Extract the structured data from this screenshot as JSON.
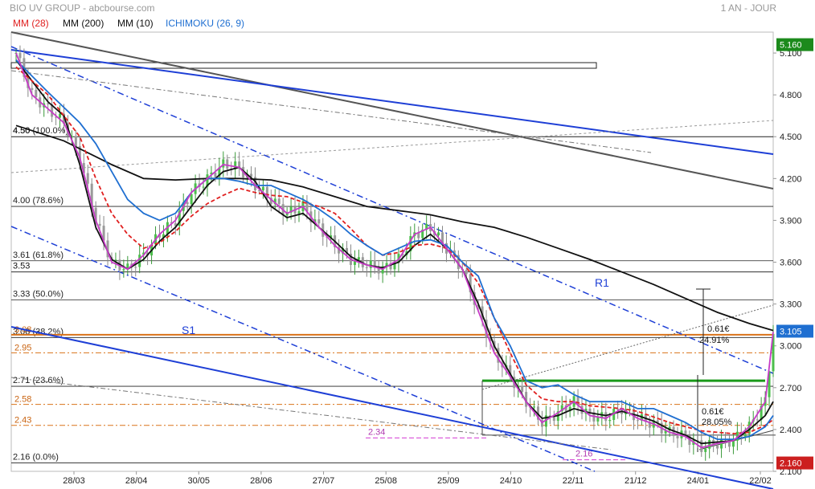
{
  "header": {
    "title": "BIO UV GROUP - abcbourse.com",
    "period": "1 AN - JOUR"
  },
  "legend": [
    {
      "label": "MM (28)",
      "color": "#e02020"
    },
    {
      "label": "MM (200)",
      "color": "#111111"
    },
    {
      "label": "MM (10)",
      "color": "#111111"
    },
    {
      "label": "ICHIMOKU (26, 9)",
      "color": "#1f6fd1"
    }
  ],
  "chart_data": {
    "type": "line",
    "ylim": [
      2.1,
      5.25
    ],
    "x_ticks": [
      "28/03",
      "28/04",
      "30/05",
      "28/06",
      "27/07",
      "25/08",
      "25/09",
      "24/10",
      "22/11",
      "21/12",
      "24/01",
      "22/02"
    ],
    "y_ticks": [
      "2.100",
      "2.400",
      "2.700",
      "3.000",
      "3.300",
      "3.600",
      "3.900",
      "4.200",
      "4.500",
      "4.800",
      "5.100"
    ],
    "last_price": "3.105",
    "max_price": "5.160",
    "min_price": "2.160",
    "fibonacci_levels": [
      {
        "value": 2.16,
        "label": "2.16  (0.0%)"
      },
      {
        "value": 2.71,
        "label": "2.71  (23.6%)"
      },
      {
        "value": 3.06,
        "label": "3.06  (38.2%)"
      },
      {
        "value": 3.33,
        "label": "3.33  (50.0%)"
      },
      {
        "value": 3.61,
        "label": "3.61  (61.8%)"
      },
      {
        "value": 4.0,
        "label": "4.00  (78.6%)"
      },
      {
        "value": 4.5,
        "label": "4.50  (100.0%)"
      }
    ],
    "horizontal_levels": [
      {
        "value": 3.53,
        "label": "3.53",
        "color": "#111111"
      },
      {
        "value": 4.5,
        "label": "4.50",
        "color": "#111111"
      }
    ],
    "orange_levels": [
      {
        "value": 3.08,
        "label": "3.08"
      },
      {
        "value": 2.95,
        "label": "2.95"
      },
      {
        "value": 2.58,
        "label": "2.58"
      },
      {
        "value": 2.43,
        "label": "2.43"
      }
    ],
    "magenta_levels": [
      {
        "value": 2.34,
        "label": "2.34"
      },
      {
        "value": 2.16,
        "label": "2.16"
      }
    ],
    "annotations": [
      {
        "text": "R1",
        "color": "#1e3fd6"
      },
      {
        "text": "S1",
        "color": "#1e3fd6"
      },
      {
        "text": "0.61€",
        "color": "#111111"
      },
      {
        "text": "24.91%",
        "color": "#111111"
      },
      {
        "text": "0.61€",
        "color": "#111111"
      },
      {
        "text": "28.05%",
        "color": "#111111"
      }
    ],
    "series": [
      {
        "name": "MM (200)",
        "color": "#111111",
        "values": [
          [
            0,
            4.58
          ],
          [
            6,
            4.47
          ],
          [
            12,
            4.3
          ],
          [
            16,
            4.2
          ],
          [
            20,
            4.19
          ],
          [
            24,
            4.2
          ],
          [
            28,
            4.2
          ],
          [
            32,
            4.19
          ],
          [
            36,
            4.14
          ],
          [
            40,
            4.07
          ],
          [
            44,
            4.0
          ],
          [
            48,
            3.97
          ],
          [
            52,
            3.94
          ],
          [
            56,
            3.89
          ],
          [
            60,
            3.85
          ],
          [
            64,
            3.78
          ],
          [
            68,
            3.7
          ],
          [
            72,
            3.62
          ],
          [
            76,
            3.53
          ],
          [
            80,
            3.44
          ],
          [
            84,
            3.34
          ],
          [
            88,
            3.24
          ],
          [
            92,
            3.16
          ],
          [
            95,
            3.11
          ]
        ]
      },
      {
        "name": "MM (10)",
        "color": "#111111",
        "values": [
          [
            0,
            5.05
          ],
          [
            2,
            4.9
          ],
          [
            4,
            4.75
          ],
          [
            6,
            4.65
          ],
          [
            8,
            4.3
          ],
          [
            10,
            3.85
          ],
          [
            12,
            3.62
          ],
          [
            14,
            3.55
          ],
          [
            16,
            3.62
          ],
          [
            18,
            3.75
          ],
          [
            20,
            3.85
          ],
          [
            22,
            4.0
          ],
          [
            24,
            4.15
          ],
          [
            26,
            4.25
          ],
          [
            28,
            4.28
          ],
          [
            30,
            4.18
          ],
          [
            32,
            4.0
          ],
          [
            34,
            3.92
          ],
          [
            36,
            3.95
          ],
          [
            38,
            3.85
          ],
          [
            40,
            3.75
          ],
          [
            42,
            3.64
          ],
          [
            44,
            3.58
          ],
          [
            46,
            3.56
          ],
          [
            48,
            3.6
          ],
          [
            50,
            3.72
          ],
          [
            52,
            3.8
          ],
          [
            54,
            3.7
          ],
          [
            56,
            3.55
          ],
          [
            58,
            3.3
          ],
          [
            60,
            3.0
          ],
          [
            62,
            2.8
          ],
          [
            64,
            2.6
          ],
          [
            66,
            2.48
          ],
          [
            68,
            2.5
          ],
          [
            70,
            2.55
          ],
          [
            72,
            2.52
          ],
          [
            74,
            2.5
          ],
          [
            76,
            2.53
          ],
          [
            78,
            2.5
          ],
          [
            80,
            2.46
          ],
          [
            82,
            2.4
          ],
          [
            84,
            2.36
          ],
          [
            86,
            2.3
          ],
          [
            88,
            2.31
          ],
          [
            90,
            2.32
          ],
          [
            92,
            2.4
          ],
          [
            94,
            2.5
          ],
          [
            95,
            2.6
          ]
        ]
      },
      {
        "name": "MM (28)",
        "color": "#e02020",
        "values": [
          [
            0,
            5.0
          ],
          [
            4,
            4.8
          ],
          [
            8,
            4.5
          ],
          [
            10,
            4.2
          ],
          [
            12,
            3.95
          ],
          [
            14,
            3.8
          ],
          [
            16,
            3.7
          ],
          [
            18,
            3.74
          ],
          [
            20,
            3.82
          ],
          [
            22,
            3.93
          ],
          [
            24,
            4.02
          ],
          [
            26,
            4.08
          ],
          [
            28,
            4.13
          ],
          [
            30,
            4.1
          ],
          [
            32,
            4.08
          ],
          [
            34,
            4.07
          ],
          [
            36,
            4.03
          ],
          [
            38,
            4.0
          ],
          [
            40,
            3.95
          ],
          [
            42,
            3.84
          ],
          [
            44,
            3.72
          ],
          [
            46,
            3.65
          ],
          [
            48,
            3.67
          ],
          [
            50,
            3.72
          ],
          [
            52,
            3.73
          ],
          [
            54,
            3.7
          ],
          [
            56,
            3.6
          ],
          [
            58,
            3.45
          ],
          [
            60,
            3.2
          ],
          [
            62,
            2.95
          ],
          [
            64,
            2.72
          ],
          [
            66,
            2.62
          ],
          [
            68,
            2.6
          ],
          [
            70,
            2.6
          ],
          [
            72,
            2.57
          ],
          [
            74,
            2.56
          ],
          [
            76,
            2.55
          ],
          [
            78,
            2.53
          ],
          [
            80,
            2.49
          ],
          [
            82,
            2.45
          ],
          [
            84,
            2.42
          ],
          [
            86,
            2.39
          ],
          [
            88,
            2.38
          ],
          [
            90,
            2.37
          ],
          [
            92,
            2.38
          ],
          [
            94,
            2.43
          ],
          [
            95,
            2.47
          ]
        ]
      },
      {
        "name": "ICHIMOKU (26, 9)",
        "color": "#1f6fd1",
        "values": [
          [
            0,
            5.05
          ],
          [
            4,
            4.82
          ],
          [
            8,
            4.6
          ],
          [
            10,
            4.45
          ],
          [
            12,
            4.25
          ],
          [
            14,
            4.05
          ],
          [
            16,
            3.95
          ],
          [
            18,
            3.9
          ],
          [
            20,
            3.95
          ],
          [
            22,
            4.1
          ],
          [
            24,
            4.2
          ],
          [
            26,
            4.2
          ],
          [
            28,
            4.18
          ],
          [
            30,
            4.15
          ],
          [
            32,
            4.15
          ],
          [
            34,
            4.1
          ],
          [
            36,
            4.05
          ],
          [
            38,
            3.98
          ],
          [
            40,
            3.9
          ],
          [
            42,
            3.8
          ],
          [
            44,
            3.72
          ],
          [
            46,
            3.65
          ],
          [
            48,
            3.7
          ],
          [
            50,
            3.75
          ],
          [
            52,
            3.76
          ],
          [
            54,
            3.72
          ],
          [
            56,
            3.6
          ],
          [
            58,
            3.5
          ],
          [
            60,
            3.2
          ],
          [
            62,
            3.0
          ],
          [
            64,
            2.75
          ],
          [
            66,
            2.7
          ],
          [
            68,
            2.72
          ],
          [
            70,
            2.65
          ],
          [
            72,
            2.6
          ],
          [
            74,
            2.6
          ],
          [
            76,
            2.6
          ],
          [
            78,
            2.55
          ],
          [
            80,
            2.55
          ],
          [
            82,
            2.5
          ],
          [
            84,
            2.45
          ],
          [
            86,
            2.38
          ],
          [
            88,
            2.33
          ],
          [
            90,
            2.33
          ],
          [
            92,
            2.35
          ],
          [
            94,
            2.42
          ],
          [
            95,
            2.5
          ]
        ]
      },
      {
        "name": "Close",
        "color": "#7a3fb0",
        "values": [
          [
            0,
            5.1
          ],
          [
            2,
            4.8
          ],
          [
            4,
            4.7
          ],
          [
            6,
            4.6
          ],
          [
            8,
            4.35
          ],
          [
            10,
            3.9
          ],
          [
            12,
            3.6
          ],
          [
            14,
            3.55
          ],
          [
            16,
            3.65
          ],
          [
            18,
            3.8
          ],
          [
            20,
            3.9
          ],
          [
            22,
            4.1
          ],
          [
            24,
            4.2
          ],
          [
            26,
            4.3
          ],
          [
            28,
            4.28
          ],
          [
            30,
            4.15
          ],
          [
            32,
            4.05
          ],
          [
            34,
            3.95
          ],
          [
            36,
            4.0
          ],
          [
            38,
            3.85
          ],
          [
            40,
            3.72
          ],
          [
            42,
            3.62
          ],
          [
            44,
            3.58
          ],
          [
            46,
            3.55
          ],
          [
            48,
            3.62
          ],
          [
            50,
            3.8
          ],
          [
            52,
            3.85
          ],
          [
            54,
            3.7
          ],
          [
            56,
            3.55
          ],
          [
            58,
            3.25
          ],
          [
            60,
            2.95
          ],
          [
            62,
            2.78
          ],
          [
            64,
            2.6
          ],
          [
            66,
            2.45
          ],
          [
            68,
            2.52
          ],
          [
            70,
            2.6
          ],
          [
            72,
            2.5
          ],
          [
            74,
            2.48
          ],
          [
            76,
            2.55
          ],
          [
            78,
            2.48
          ],
          [
            80,
            2.44
          ],
          [
            82,
            2.38
          ],
          [
            84,
            2.35
          ],
          [
            86,
            2.27
          ],
          [
            88,
            2.3
          ],
          [
            90,
            2.32
          ],
          [
            92,
            2.42
          ],
          [
            94,
            2.6
          ],
          [
            95,
            3.1
          ]
        ]
      }
    ],
    "grid": false
  }
}
